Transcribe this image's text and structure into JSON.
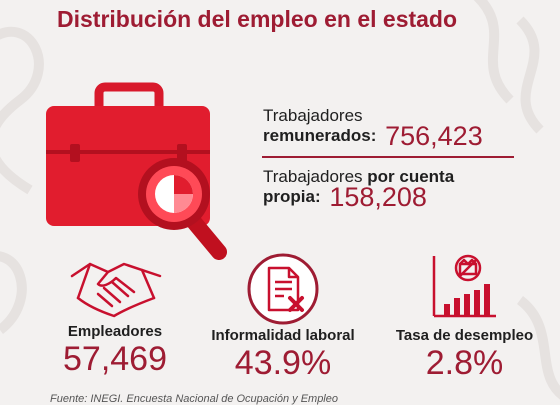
{
  "title": "Distribución del empleo en el estado",
  "stats": {
    "remunerados": {
      "line1": "Trabajadores",
      "line2": "remunerados:",
      "value": "756,423"
    },
    "cuenta_propia": {
      "line1a": "Trabajadores ",
      "line1b": "por cuenta",
      "line2": "propia:",
      "value": "158,208"
    }
  },
  "indicators": [
    {
      "label": "Empleadores",
      "value": "57,469",
      "icon": "handshake-icon"
    },
    {
      "label": "Informalidad laboral",
      "value": "43.9%",
      "icon": "document-x-icon"
    },
    {
      "label": "Tasa de desempleo",
      "value": "2.8%",
      "icon": "factory-chart-icon"
    }
  ],
  "source": "Fuente: INEGI. Encuesta Nacional de Ocupación y Empleo",
  "colors": {
    "accent": "#9e1c33",
    "red": "#e11d2e",
    "background": "#f3f1f0"
  }
}
